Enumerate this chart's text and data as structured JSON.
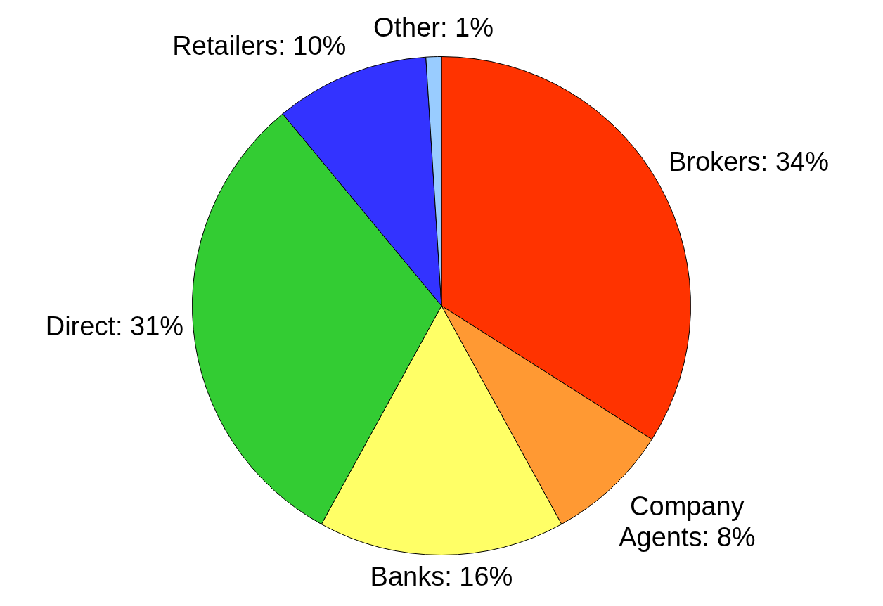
{
  "chart_data": {
    "type": "pie",
    "categories": [
      "Brokers: 34%",
      "Company Agents: 8%",
      "Banks: 16%",
      "Direct: 31%",
      "Retailers: 10%",
      "Other: 1%"
    ],
    "values": [
      34,
      8,
      16,
      31,
      10,
      1
    ],
    "colors": [
      "#ff3300",
      "#ff9933",
      "#ffff66",
      "#33cc33",
      "#3333ff",
      "#99ccff"
    ],
    "legend": false
  }
}
